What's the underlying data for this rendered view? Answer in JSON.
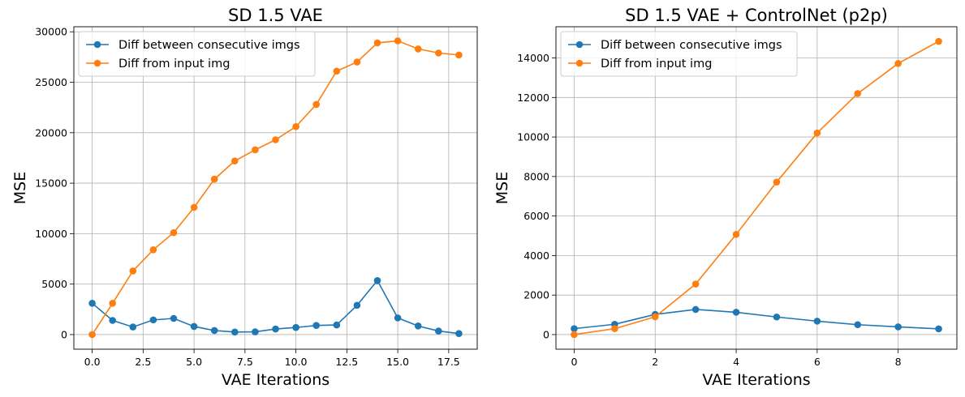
{
  "chart_data": [
    {
      "type": "line",
      "title": "SD 1.5 VAE",
      "xlabel": "VAE Iterations",
      "ylabel": "MSE",
      "xlim": [
        -0.9,
        18.9
      ],
      "ylim": [
        -1450,
        30500
      ],
      "xticks": [
        0.0,
        2.5,
        5.0,
        7.5,
        10.0,
        12.5,
        15.0,
        17.5
      ],
      "xtick_labels": [
        "0.0",
        "2.5",
        "5.0",
        "7.5",
        "10.0",
        "12.5",
        "15.0",
        "17.5"
      ],
      "yticks": [
        0,
        5000,
        10000,
        15000,
        20000,
        25000,
        30000
      ],
      "ytick_labels": [
        "0",
        "5000",
        "10000",
        "15000",
        "20000",
        "25000",
        "30000"
      ],
      "grid": true,
      "legend": "upper-left",
      "x": [
        0,
        1,
        2,
        3,
        4,
        5,
        6,
        7,
        8,
        9,
        10,
        11,
        12,
        13,
        14,
        15,
        16,
        17,
        18
      ],
      "series": [
        {
          "name": "Diff between consecutive imgs",
          "color": "#1f77b4",
          "values": [
            3100,
            1400,
            750,
            1450,
            1600,
            800,
            400,
            250,
            270,
            550,
            700,
            900,
            950,
            2900,
            5350,
            1650,
            850,
            350,
            100
          ]
        },
        {
          "name": "Diff from input img",
          "color": "#ff7f0e",
          "values": [
            0,
            3100,
            6300,
            8400,
            10100,
            12600,
            15400,
            17200,
            18300,
            19300,
            20600,
            22800,
            26100,
            27000,
            28900,
            29100,
            28300,
            27900,
            27700
          ]
        }
      ]
    },
    {
      "type": "line",
      "title": "SD 1.5 VAE + ControlNet (p2p)",
      "xlabel": "VAE Iterations",
      "ylabel": "MSE",
      "xlim": [
        -0.45,
        9.45
      ],
      "ylim": [
        -740,
        15580
      ],
      "xticks": [
        0,
        2,
        4,
        6,
        8
      ],
      "xtick_labels": [
        "0",
        "2",
        "4",
        "6",
        "8"
      ],
      "yticks": [
        0,
        2000,
        4000,
        6000,
        8000,
        10000,
        12000,
        14000
      ],
      "ytick_labels": [
        "0",
        "2000",
        "4000",
        "6000",
        "8000",
        "10000",
        "12000",
        "14000"
      ],
      "grid": true,
      "legend": "upper-left",
      "x": [
        0,
        1,
        2,
        3,
        4,
        5,
        6,
        7,
        8,
        9
      ],
      "series": [
        {
          "name": "Diff between consecutive imgs",
          "color": "#1f77b4",
          "values": [
            300,
            520,
            1020,
            1270,
            1130,
            890,
            680,
            500,
            390,
            290
          ]
        },
        {
          "name": "Diff from input img",
          "color": "#ff7f0e",
          "values": [
            0,
            300,
            900,
            2560,
            5070,
            7720,
            10200,
            12200,
            13720,
            14840
          ]
        }
      ]
    }
  ]
}
